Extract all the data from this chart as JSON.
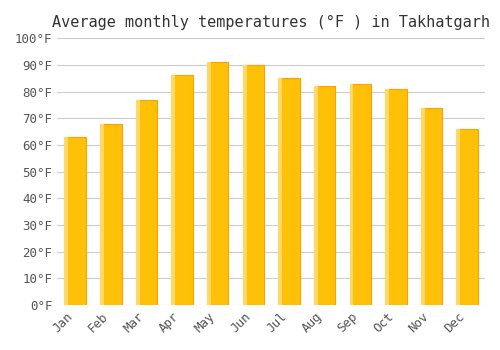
{
  "title": "Average monthly temperatures (°F ) in Takhatgarh",
  "months": [
    "Jan",
    "Feb",
    "Mar",
    "Apr",
    "May",
    "Jun",
    "Jul",
    "Aug",
    "Sep",
    "Oct",
    "Nov",
    "Dec"
  ],
  "values": [
    63,
    68,
    77,
    86,
    91,
    90,
    85,
    82,
    83,
    81,
    74,
    66
  ],
  "bar_color_face": "#FFC107",
  "bar_color_edge": "#FFA000",
  "background_color": "#FFFFFF",
  "grid_color": "#CCCCCC",
  "ylim": [
    0,
    100
  ],
  "ytick_step": 10,
  "title_fontsize": 11,
  "tick_fontsize": 9,
  "font_family": "monospace"
}
